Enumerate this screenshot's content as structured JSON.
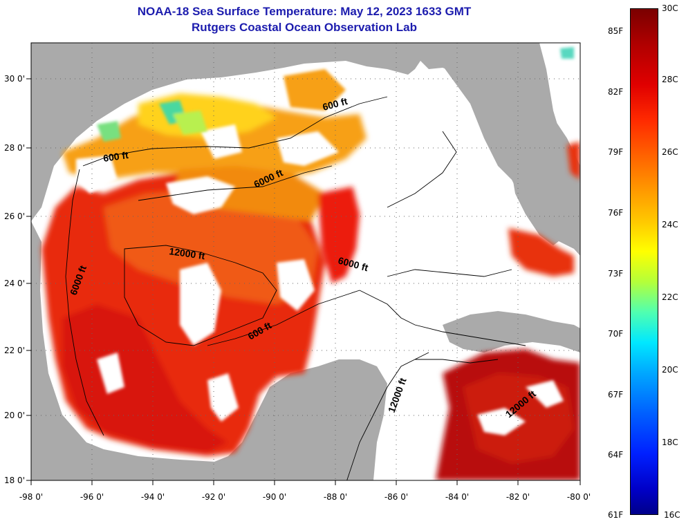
{
  "title_line1": "NOAA-18 Sea Surface Temperature:  May 12, 2023 1633 GMT",
  "title_line2": "Rutgers Coastal Ocean Observation Lab",
  "colors": {
    "land": "#aaaaaa",
    "cloud": "#ffffff",
    "title": "#1c1cae"
  },
  "map_axes": {
    "lon_labels": [
      "-98 0'",
      "-96 0'",
      "-94 0'",
      "-92 0'",
      "-90 0'",
      "-88 0'",
      "-86 0'",
      "-84 0'",
      "-82 0'",
      "-80 0'"
    ],
    "lat_labels": [
      "30 0'",
      "28 0'",
      "26 0'",
      "24 0'",
      "22 0'",
      "20 0'",
      "18 0'"
    ],
    "lon_range": [
      -98,
      -80
    ],
    "lat_range": [
      18,
      31
    ]
  },
  "contour_labels": [
    "600 ft",
    "600 ft",
    "6000 ft",
    "12000 ft",
    "6000 ft",
    "6000 ft",
    "600 ft",
    "12000 ft",
    "12000 ft"
  ],
  "colorbar": {
    "celsius_labels": [
      "30C",
      "28C",
      "26C",
      "24C",
      "22C",
      "20C",
      "18C",
      "16C"
    ],
    "fahrenheit_labels": [
      "85F",
      "82F",
      "79F",
      "76F",
      "73F",
      "70F",
      "67F",
      "64F",
      "61F"
    ],
    "range_c": [
      16,
      30
    ]
  }
}
